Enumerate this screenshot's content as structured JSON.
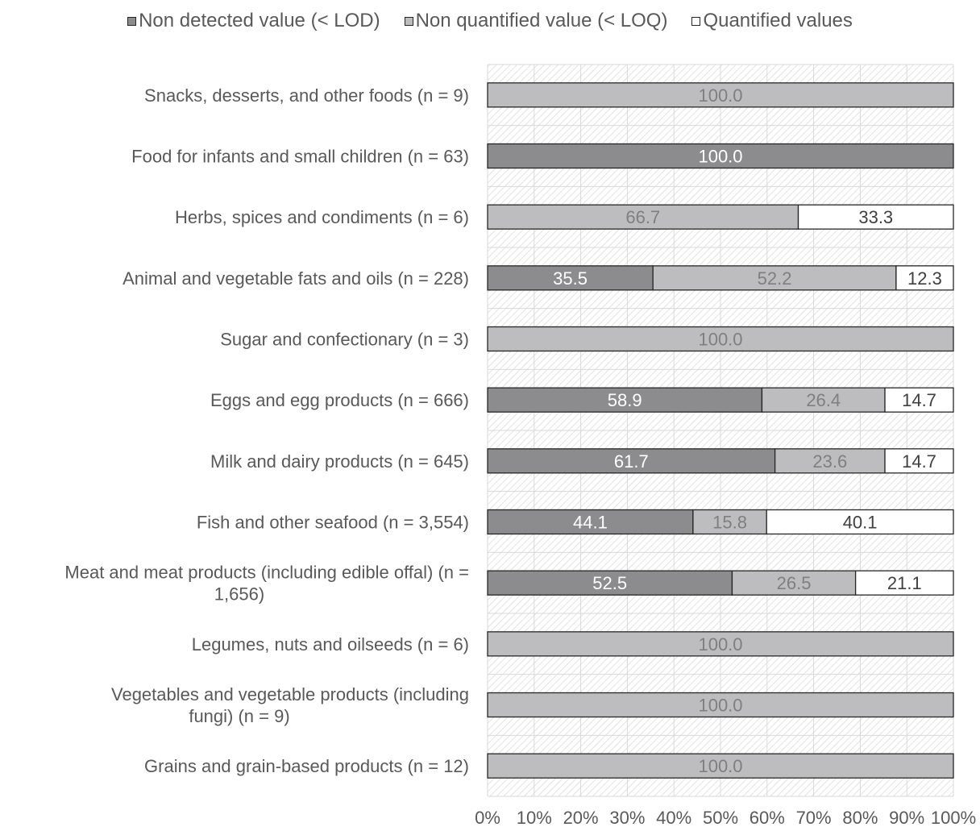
{
  "chart_data": {
    "type": "bar",
    "orientation": "horizontal",
    "stacked": true,
    "categories": [
      "Snacks, desserts, and other foods (n = 9)",
      "Food for infants and small children (n = 63)",
      "Herbs, spices and condiments (n = 6)",
      "Animal and vegetable fats and oils (n = 228)",
      "Sugar and confectionary (n = 3)",
      "Eggs and egg products (n = 666)",
      "Milk and dairy products (n = 645)",
      "Fish and other seafood (n = 3,554)",
      "Meat and meat products (including edible offal) (n = 1,656)",
      "Legumes, nuts and oilseeds (n = 6)",
      "Vegetables and vegetable products (including fungi) (n = 9)",
      "Grains and grain-based products (n = 12)"
    ],
    "category_lines": [
      [
        "Snacks, desserts, and other foods (n = 9)"
      ],
      [
        "Food for infants and small children (n = 63)"
      ],
      [
        "Herbs, spices and condiments (n = 6)"
      ],
      [
        "Animal and vegetable fats and oils (n = 228)"
      ],
      [
        "Sugar and confectionary (n = 3)"
      ],
      [
        "Eggs and egg products (n = 666)"
      ],
      [
        "Milk and dairy products (n = 645)"
      ],
      [
        "Fish and other seafood (n = 3,554)"
      ],
      [
        "Meat and meat products (including edible offal) (n =",
        "1,656)"
      ],
      [
        "Legumes, nuts and oilseeds (n = 6)"
      ],
      [
        "Vegetables and vegetable products (including",
        "fungi) (n = 9)"
      ],
      [
        "Grains and grain-based products (n = 12)"
      ]
    ],
    "series": [
      {
        "name": "Non detected value (< LOD)",
        "color": "#8c8c8e",
        "label_color": "#ffffff",
        "values": [
          null,
          100.0,
          null,
          35.5,
          null,
          58.9,
          61.7,
          44.1,
          52.5,
          null,
          null,
          null
        ]
      },
      {
        "name": "Non quantified value (< LOQ)",
        "color": "#bdbdbf",
        "label_color": "#7f7f7f",
        "values": [
          100.0,
          null,
          66.7,
          52.2,
          100.0,
          26.4,
          23.6,
          15.8,
          26.5,
          100.0,
          100.0,
          100.0
        ]
      },
      {
        "name": "Quantified values",
        "color": "#ffffff",
        "label_color": "#404040",
        "values": [
          null,
          null,
          33.3,
          12.3,
          null,
          14.7,
          14.7,
          40.1,
          21.1,
          null,
          null,
          null
        ]
      }
    ],
    "xlim": [
      0,
      100
    ],
    "xticks": [
      0,
      10,
      20,
      30,
      40,
      50,
      60,
      70,
      80,
      90,
      100
    ],
    "xtick_labels": [
      "0%",
      "10%",
      "20%",
      "30%",
      "40%",
      "50%",
      "60%",
      "70%",
      "80%",
      "90%",
      "100%"
    ],
    "legend_position": "top",
    "grid": true,
    "background": "hatched",
    "colors": {
      "grid": "#d9d9d9",
      "hatch": "#dcdcdc",
      "bar_outline": "#262626",
      "category_text": "#595959",
      "tick_text": "#595959"
    }
  }
}
